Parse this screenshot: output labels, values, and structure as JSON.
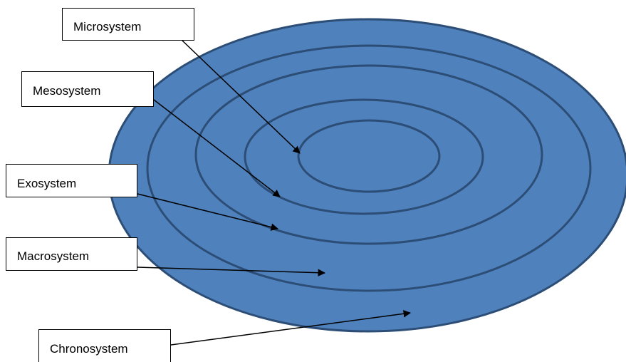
{
  "diagram": {
    "labels": {
      "microsystem": "Microsystem",
      "mesosystem": "Mesosystem",
      "exosystem": "Exosystem",
      "macrosystem": "Macrosystem",
      "chronosystem": "Chronosystem"
    },
    "colors": {
      "fill": "#4f81bd",
      "stroke": "#2c4d75",
      "arrow": "#000000",
      "box_border": "#000000",
      "box_fill": "#ffffff"
    }
  }
}
